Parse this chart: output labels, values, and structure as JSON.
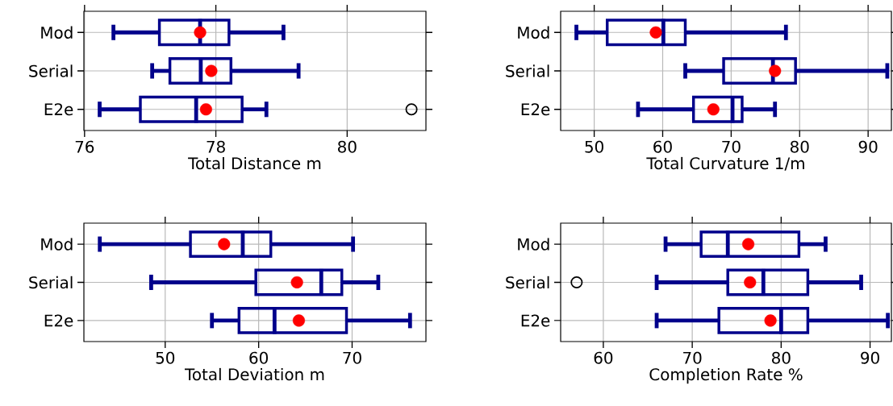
{
  "chart_data": [
    {
      "type": "box",
      "orientation": "horizontal",
      "categories": [
        "Mod",
        "Serial",
        "E2e"
      ],
      "xlabel": "Total Distance m",
      "xlim": [
        75.99,
        81.2
      ],
      "xticks": [
        76,
        78,
        80
      ],
      "grid": true,
      "color": "#00008b",
      "boxes": [
        {
          "low": 76.44,
          "q1": 77.14,
          "median": 77.76,
          "q3": 78.2,
          "high": 79.03,
          "mean": 77.76
        },
        {
          "low": 77.03,
          "q1": 77.3,
          "median": 77.77,
          "q3": 78.23,
          "high": 79.26,
          "mean": 77.93
        },
        {
          "low": 76.23,
          "q1": 76.85,
          "median": 77.7,
          "q3": 78.4,
          "high": 78.77,
          "mean": 77.85,
          "outliers": [
            80.98
          ]
        }
      ]
    },
    {
      "type": "box",
      "orientation": "horizontal",
      "categories": [
        "Mod",
        "Serial",
        "E2e"
      ],
      "xlabel": "Total Curvature 1/m",
      "xlim": [
        45.1,
        93.4
      ],
      "xticks": [
        50,
        60,
        70,
        80,
        90
      ],
      "grid": true,
      "color": "#00008b",
      "boxes": [
        {
          "low": 47.4,
          "q1": 51.9,
          "median": 60.1,
          "q3": 63.3,
          "high": 78.0,
          "mean": 59.0
        },
        {
          "low": 63.3,
          "q1": 68.9,
          "median": 76.1,
          "q3": 79.4,
          "high": 92.8,
          "mean": 76.4
        },
        {
          "low": 56.4,
          "q1": 64.5,
          "median": 70.2,
          "q3": 71.6,
          "high": 76.4,
          "mean": 67.4
        }
      ]
    },
    {
      "type": "box",
      "orientation": "horizontal",
      "categories": [
        "Mod",
        "Serial",
        "E2e"
      ],
      "xlabel": "Total Deviation m",
      "xlim": [
        41.3,
        77.9
      ],
      "xticks": [
        50,
        60,
        70
      ],
      "grid": true,
      "color": "#00008b",
      "boxes": [
        {
          "low": 43.0,
          "q1": 52.7,
          "median": 58.3,
          "q3": 61.3,
          "high": 70.1,
          "mean": 56.3
        },
        {
          "low": 48.5,
          "q1": 59.7,
          "median": 66.7,
          "q3": 68.9,
          "high": 72.8,
          "mean": 64.1
        },
        {
          "low": 55.0,
          "q1": 57.9,
          "median": 61.7,
          "q3": 69.4,
          "high": 76.2,
          "mean": 64.3
        }
      ]
    },
    {
      "type": "box",
      "orientation": "horizontal",
      "categories": [
        "Mod",
        "Serial",
        "E2e"
      ],
      "xlabel": "Completion Rate %",
      "xlim": [
        55.2,
        92.4
      ],
      "xticks": [
        60,
        70,
        80,
        90
      ],
      "grid": true,
      "color": "#00008b",
      "boxes": [
        {
          "low": 67,
          "q1": 71,
          "median": 74,
          "q3": 82,
          "high": 85,
          "mean": 76.3
        },
        {
          "low": 66,
          "q1": 74,
          "median": 78,
          "q3": 83,
          "high": 89,
          "mean": 76.5,
          "outliers": [
            57
          ]
        },
        {
          "low": 66,
          "q1": 73,
          "median": 80,
          "q3": 83,
          "high": 92,
          "mean": 78.8
        }
      ]
    }
  ]
}
